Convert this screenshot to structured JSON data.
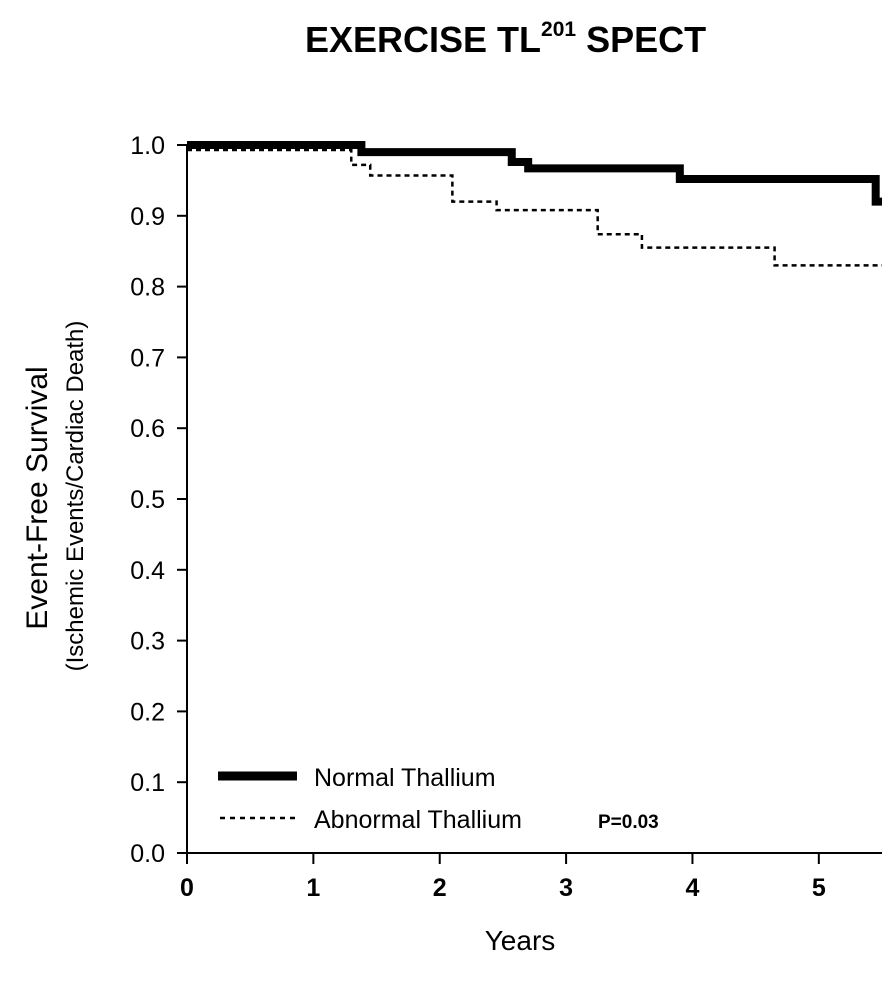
{
  "chart_data": {
    "type": "line",
    "title_main": "EXERCISE TL",
    "title_sup": "201",
    "title_tail": " SPECT",
    "xlabel": "Years",
    "ylabel": "Event-Free Survival",
    "ylabel_sub": "(Ischemic Events/Cardiac Death)",
    "xlim": [
      0,
      5.5
    ],
    "ylim": [
      0,
      1.0
    ],
    "xticks": [
      0,
      1,
      2,
      3,
      4,
      5
    ],
    "xtick_labels": [
      "0",
      "1",
      "2",
      "3",
      "4",
      "5"
    ],
    "yticks": [
      0,
      0.1,
      0.2,
      0.3,
      0.4,
      0.5,
      0.6,
      0.7,
      0.8,
      0.9,
      1.0
    ],
    "ytick_labels": [
      "0.0",
      "0.1",
      "0.2",
      "0.3",
      "0.4",
      "0.5",
      "0.6",
      "0.7",
      "0.8",
      "0.9",
      "1.0"
    ],
    "step": true,
    "grid": false,
    "legend_position": "bottom-left",
    "annotation": "P=0.03",
    "series": [
      {
        "name": "Normal Thallium",
        "style": "solid-thick",
        "color": "#000000",
        "x": [
          0,
          1.38,
          2.57,
          2.7,
          3.9,
          5.45,
          5.5
        ],
        "y": [
          1.0,
          0.99,
          0.976,
          0.967,
          0.952,
          0.92,
          0.92
        ]
      },
      {
        "name": "Abnormal Thallium",
        "style": "dotted-thin",
        "color": "#000000",
        "x": [
          0,
          1.3,
          1.45,
          2.1,
          2.45,
          3.25,
          3.6,
          4.65,
          5.5
        ],
        "y": [
          0.993,
          0.972,
          0.957,
          0.92,
          0.908,
          0.874,
          0.855,
          0.83,
          0.83
        ]
      }
    ]
  }
}
